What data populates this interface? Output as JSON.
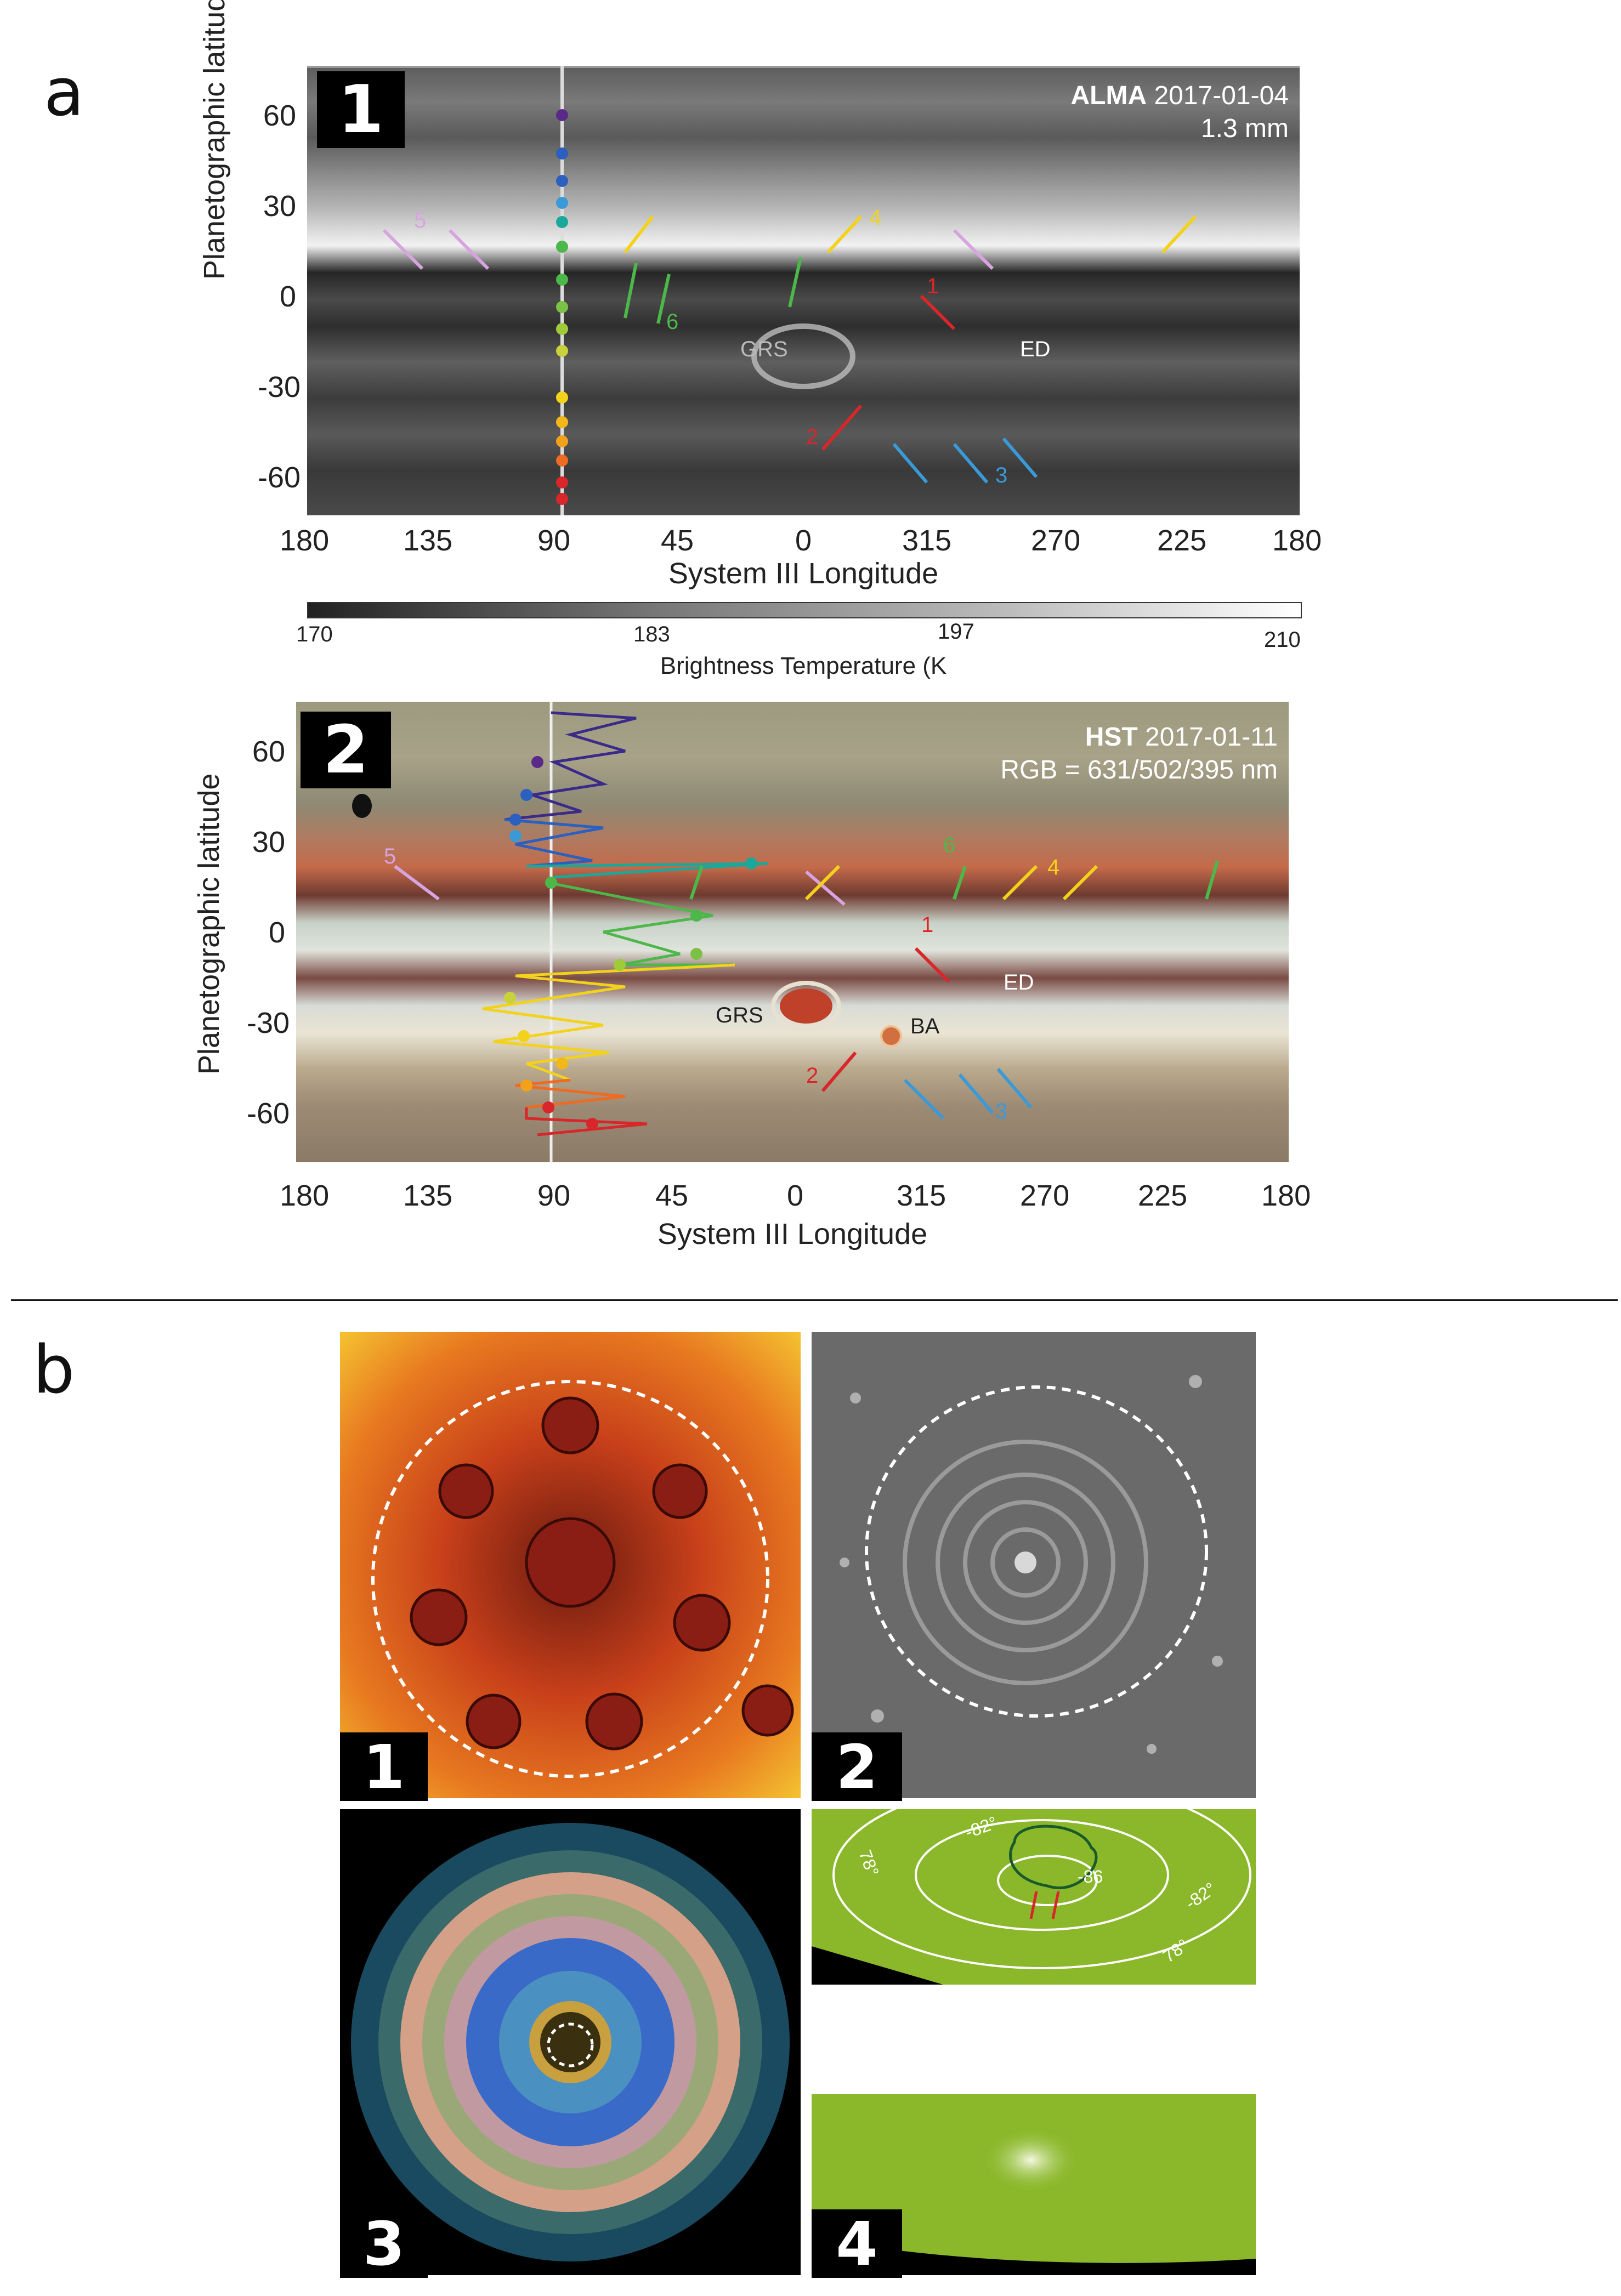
{
  "section_a": {
    "letter": "a",
    "panel1": {
      "badge": "1",
      "title_bold": "ALMA",
      "title_date": "2017-01-04",
      "subtitle": "1.3 mm",
      "ylabel": "Planetographic latitude",
      "xlabel": "System III Longitude",
      "yticks": [
        "60",
        "30",
        "0",
        "-30",
        "-60"
      ],
      "xticks": [
        "180",
        "135",
        "90",
        "45",
        "0",
        "315",
        "270",
        "225",
        "180"
      ],
      "features": [
        "GRS",
        "ED"
      ],
      "arrow_numbers": [
        "5",
        "4",
        "6",
        "1",
        "2",
        "3"
      ],
      "colorbar_ticks": [
        "170",
        "183",
        "197",
        "210"
      ],
      "colorbar_label": "Brightness Temperature (K"
    },
    "panel2": {
      "badge": "2",
      "title_bold": "HST",
      "title_date": "2017-01-11",
      "subtitle": "RGB = 631/502/395 nm",
      "ylabel": "Planetographic latitude",
      "xlabel": "System III Longitude",
      "yticks": [
        "60",
        "30",
        "0",
        "-30",
        "-60"
      ],
      "xticks": [
        "180",
        "135",
        "90",
        "45",
        "0",
        "315",
        "270",
        "225",
        "180"
      ],
      "features": [
        "GRS",
        "BA",
        "ED"
      ],
      "arrow_numbers": [
        "5",
        "6",
        "4",
        "1",
        "2",
        "3"
      ]
    }
  },
  "section_b": {
    "letter": "b",
    "panels": [
      {
        "badge": "1"
      },
      {
        "badge": "2"
      },
      {
        "badge": "3"
      },
      {
        "badge": "4"
      }
    ],
    "contour_labels": [
      "-82°",
      "78°",
      "-86",
      "-82°",
      "78°"
    ]
  },
  "colors": {
    "purple": "#5a2a8a",
    "blue": "#2b5fc0",
    "lightblue": "#3a9ad8",
    "teal": "#1aa89a",
    "green": "#4cb84a",
    "lime": "#9ecb3a",
    "yellow": "#f2d21a",
    "orange": "#f2a21a",
    "redorange": "#ef6a22",
    "red": "#d9262a",
    "pink": "#d8a4e0"
  }
}
